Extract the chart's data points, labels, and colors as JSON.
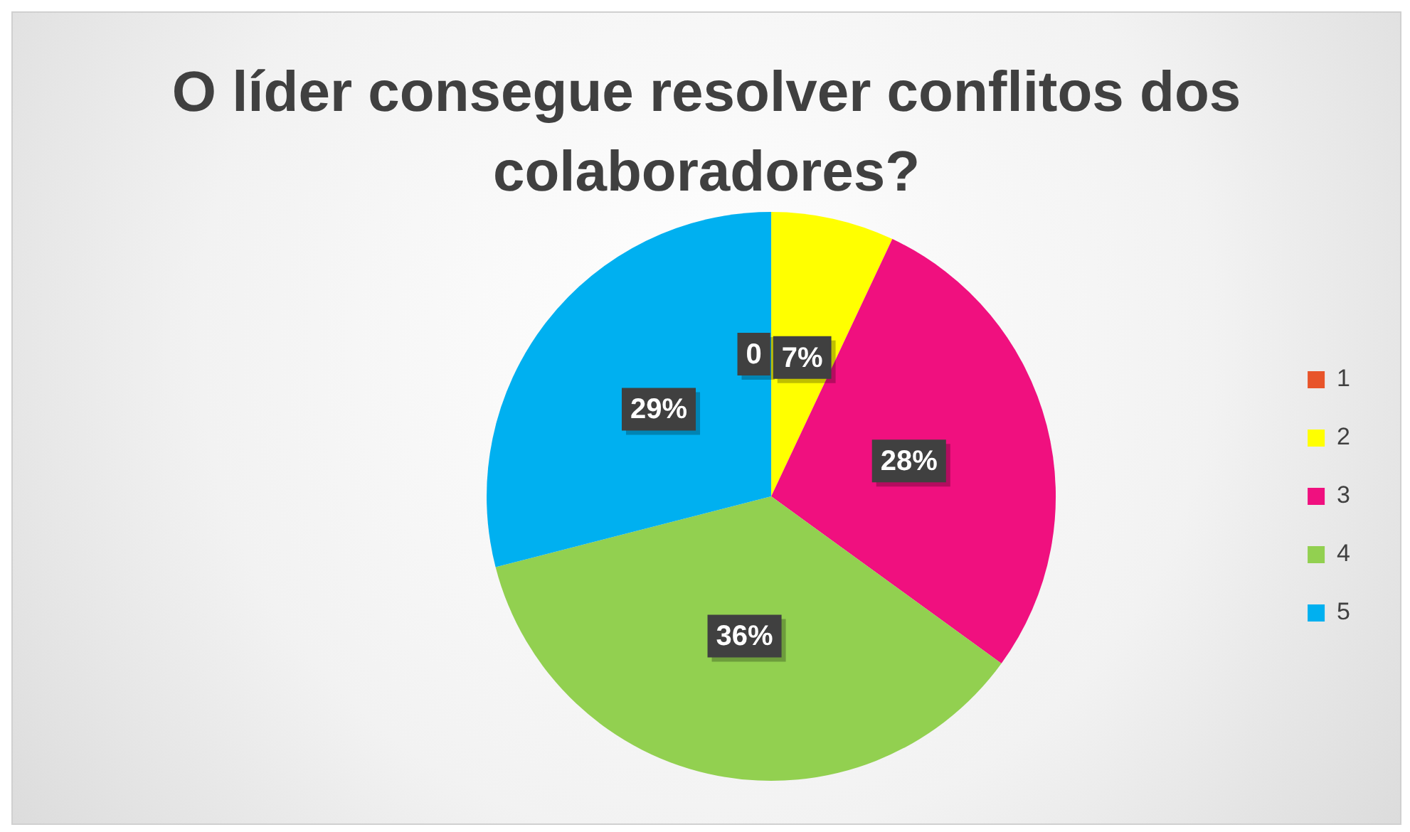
{
  "chart_data": {
    "type": "pie",
    "title": "O líder consegue resolver conflitos dos colaboradores?",
    "categories": [
      "1",
      "2",
      "3",
      "4",
      "5"
    ],
    "values": [
      0,
      7,
      28,
      36,
      29
    ],
    "colors": [
      "#e8542a",
      "#ffff00",
      "#f0107f",
      "#92d050",
      "#00b0f0"
    ],
    "value_labels": [
      "0",
      "7%",
      "28%",
      "36%",
      "29%"
    ],
    "legend": "right"
  }
}
